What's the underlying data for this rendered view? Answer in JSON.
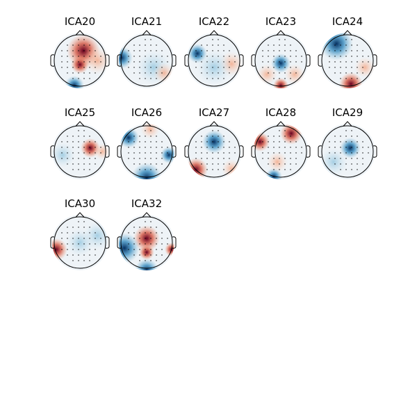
{
  "panels": [
    {
      "title": "ICA20"
    },
    {
      "title": "ICA21"
    },
    {
      "title": "ICA22"
    },
    {
      "title": "ICA23"
    },
    {
      "title": "ICA24"
    },
    {
      "title": "ICA25"
    },
    {
      "title": "ICA26"
    },
    {
      "title": "ICA27"
    },
    {
      "title": "ICA28"
    },
    {
      "title": "ICA29"
    },
    {
      "title": "ICA30"
    },
    {
      "title": "ICA32"
    }
  ]
}
